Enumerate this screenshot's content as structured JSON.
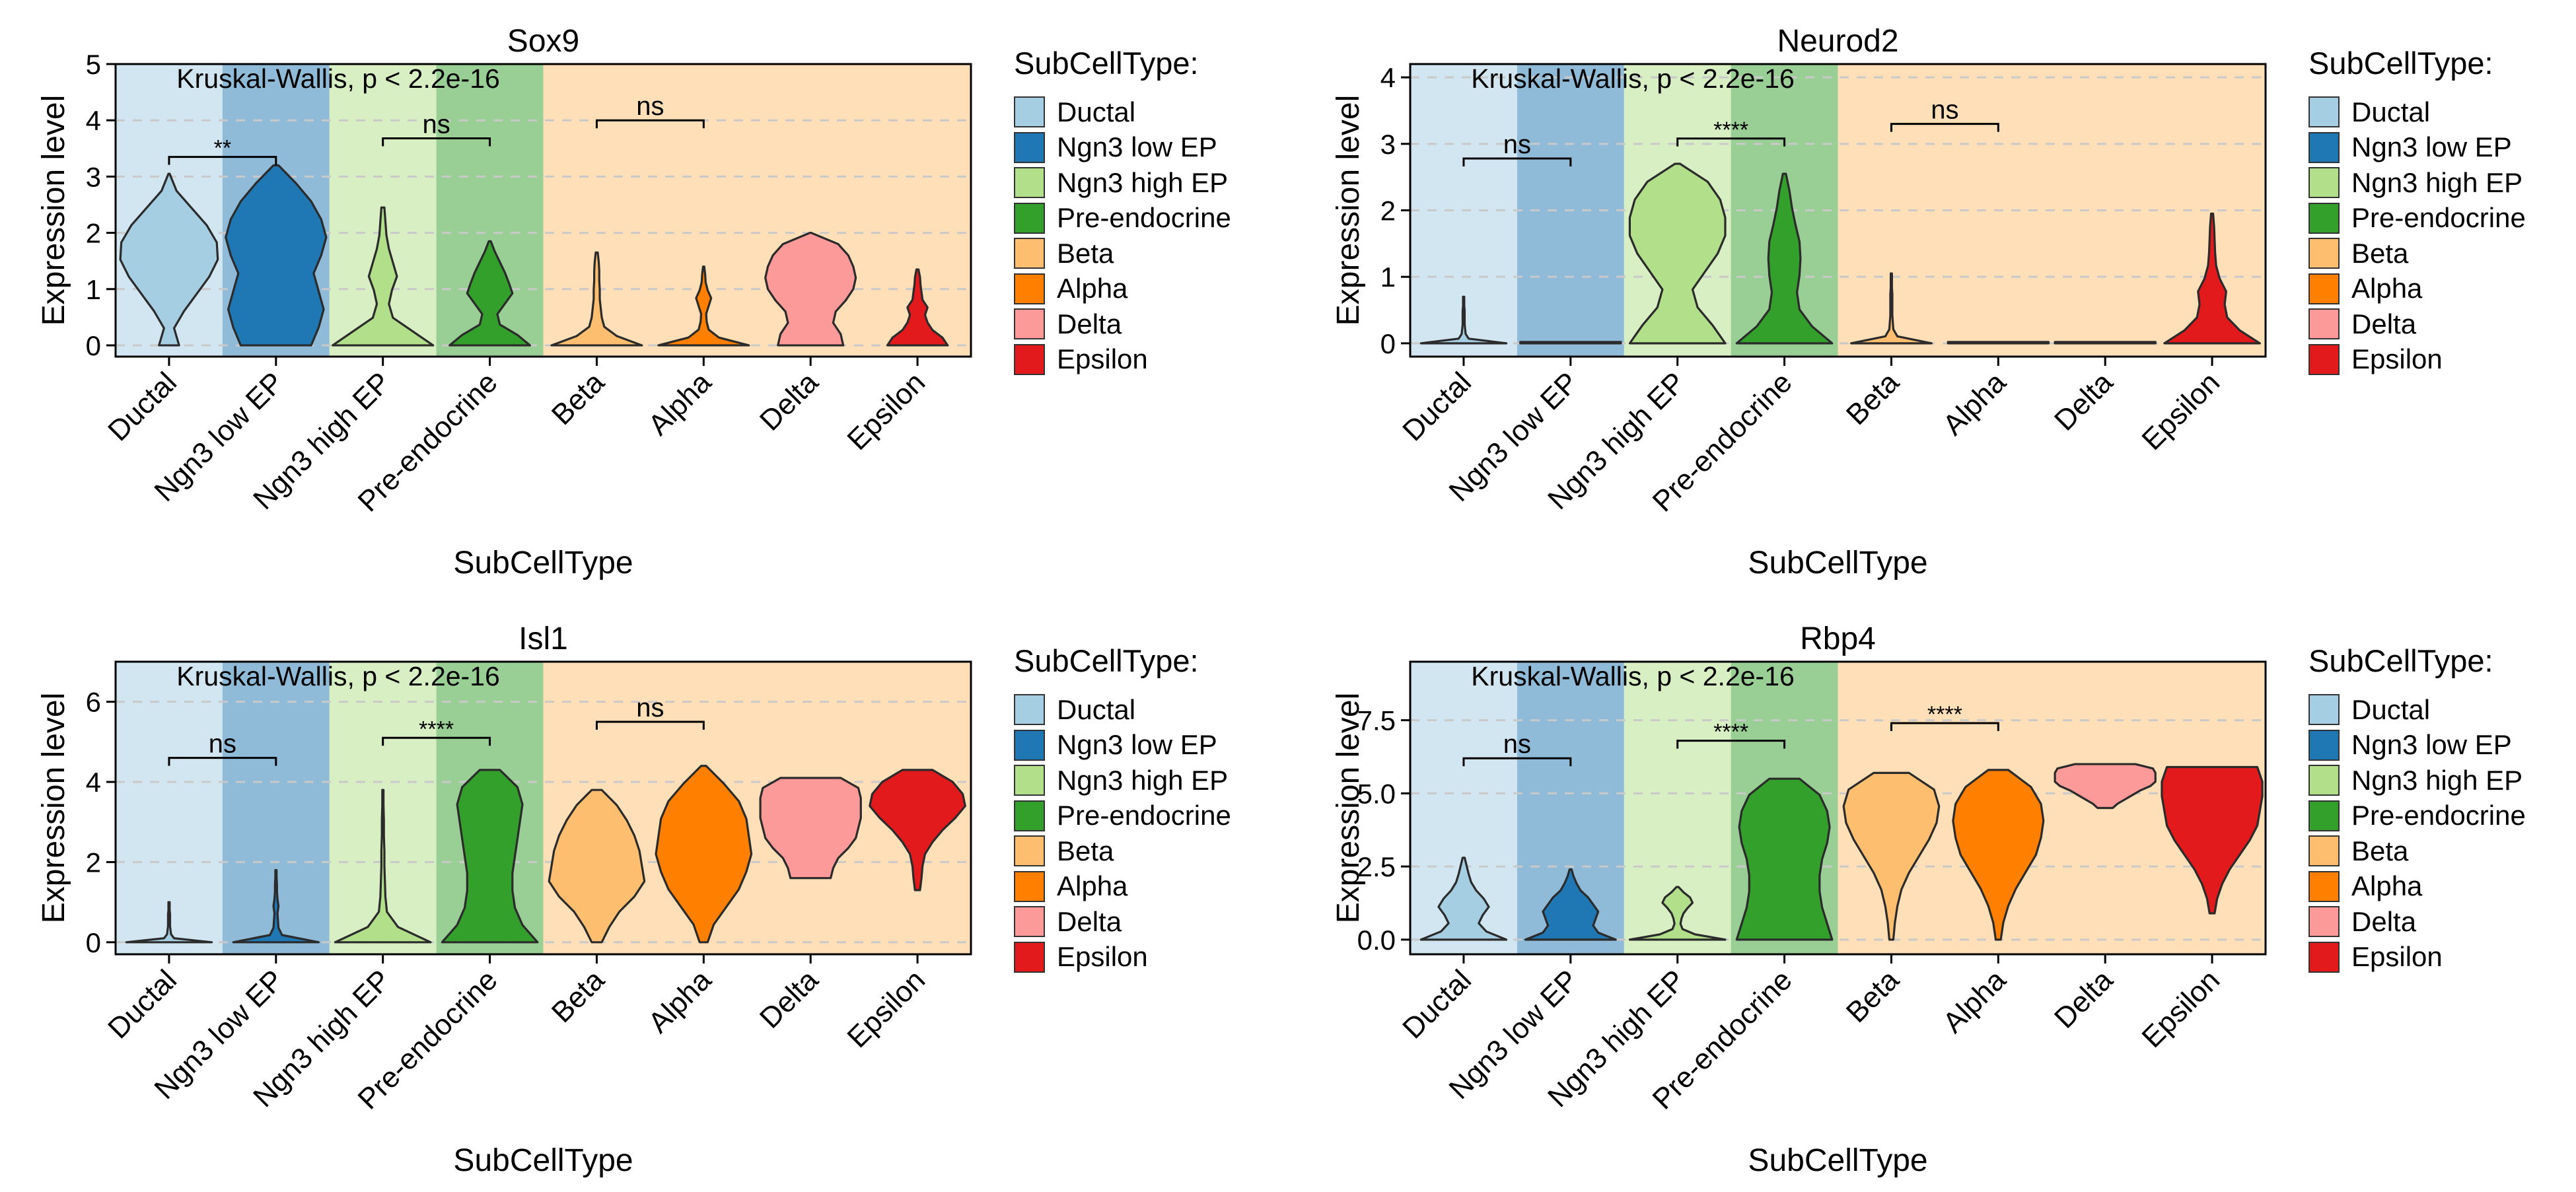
{
  "palette": {
    "Ductal": "#A6CEE3",
    "Ngn3 low EP": "#1F78B4",
    "Ngn3 high EP": "#B2DF8A",
    "Pre-endocrine": "#33A02C",
    "Beta": "#FDBF6F",
    "Alpha": "#FF7F00",
    "Delta": "#FB9A99",
    "Epsilon": "#E31A1C"
  },
  "chart_data": [
    {
      "type": "violin",
      "title": "Sox9",
      "xlabel": "SubCellType",
      "ylabel": "Expression level",
      "categories": [
        "Ductal",
        "Ngn3 low EP",
        "Ngn3 high EP",
        "Pre-endocrine",
        "Beta",
        "Alpha",
        "Delta",
        "Epsilon"
      ],
      "ylim": [
        -0.2,
        5
      ],
      "yticks": [
        0,
        1,
        2,
        3,
        4,
        5
      ],
      "ytick_labels": [
        "0",
        "1",
        "2",
        "3",
        "4",
        "5"
      ],
      "test_label": "Kruskal-Wallis, p < 2.2e-16",
      "background_groups": [
        {
          "from": "Ductal",
          "to": "Ductal",
          "color": "#A6CEE3"
        },
        {
          "from": "Ngn3 low EP",
          "to": "Ngn3 low EP",
          "color": "#1F78B4"
        },
        {
          "from": "Ngn3 high EP",
          "to": "Ngn3 high EP",
          "color": "#B2DF8A"
        },
        {
          "from": "Pre-endocrine",
          "to": "Pre-endocrine",
          "color": "#33A02C"
        },
        {
          "from": "Beta",
          "to": "Epsilon",
          "color": "#FDBF6F"
        }
      ],
      "comparisons": [
        {
          "groups": [
            "Ductal",
            "Ngn3 low EP"
          ],
          "y": 3.35,
          "label": "**"
        },
        {
          "groups": [
            "Ngn3 high EP",
            "Pre-endocrine"
          ],
          "y": 3.68,
          "label": "ns"
        },
        {
          "groups": [
            "Beta",
            "Alpha"
          ],
          "y": 4.0,
          "label": "ns"
        }
      ],
      "violins": [
        {
          "group": "Ductal",
          "ymin": 0,
          "ymax": 3.05,
          "widths": [
            0.2,
            0.1,
            0.3,
            0.55,
            0.8,
            0.97,
            0.95,
            0.75,
            0.45,
            0.15,
            0
          ]
        },
        {
          "group": "Ngn3 low EP",
          "ymin": 0,
          "ymax": 3.2,
          "widths": [
            0.7,
            0.85,
            0.95,
            0.85,
            0.75,
            0.9,
            1.0,
            0.9,
            0.7,
            0.4,
            0.05
          ]
        },
        {
          "group": "Ngn3 high EP",
          "ymin": 0,
          "ymax": 2.45,
          "widths": [
            1.0,
            0.6,
            0.2,
            0.12,
            0.18,
            0.28,
            0.2,
            0.12,
            0.07,
            0.05,
            0.03
          ]
        },
        {
          "group": "Pre-endocrine",
          "ymin": 0,
          "ymax": 1.85,
          "widths": [
            0.8,
            0.55,
            0.2,
            0.15,
            0.3,
            0.45,
            0.38,
            0.3,
            0.2,
            0.1,
            0.02
          ]
        },
        {
          "group": "Beta",
          "ymin": 0,
          "ymax": 1.65,
          "widths": [
            0.9,
            0.4,
            0.15,
            0.1,
            0.08,
            0.06,
            0.06,
            0.05,
            0.05,
            0.04,
            0.02
          ]
        },
        {
          "group": "Alpha",
          "ymin": 0,
          "ymax": 1.4,
          "widths": [
            0.9,
            0.3,
            0.1,
            0.06,
            0.05,
            0.1,
            0.15,
            0.08,
            0.04,
            0.03,
            0.01
          ]
        },
        {
          "group": "Delta",
          "ymin": 0,
          "ymax": 2.0,
          "widths": [
            0.65,
            0.6,
            0.45,
            0.5,
            0.7,
            0.85,
            0.9,
            0.85,
            0.75,
            0.55,
            0
          ]
        },
        {
          "group": "Epsilon",
          "ymin": 0,
          "ymax": 1.35,
          "widths": [
            0.6,
            0.5,
            0.3,
            0.2,
            0.15,
            0.2,
            0.1,
            0.08,
            0.06,
            0.05,
            0.02
          ]
        }
      ]
    },
    {
      "type": "violin",
      "title": "Neurod2",
      "xlabel": "SubCellType",
      "ylabel": "Expression level",
      "categories": [
        "Ductal",
        "Ngn3 low EP",
        "Ngn3 high EP",
        "Pre-endocrine",
        "Beta",
        "Alpha",
        "Delta",
        "Epsilon"
      ],
      "ylim": [
        -0.2,
        4.2
      ],
      "yticks": [
        0,
        1,
        2,
        3,
        4
      ],
      "ytick_labels": [
        "0",
        "1",
        "2",
        "3",
        "4"
      ],
      "test_label": "Kruskal-Wallis, p < 2.2e-16",
      "background_groups": [
        {
          "from": "Ductal",
          "to": "Ductal",
          "color": "#A6CEE3"
        },
        {
          "from": "Ngn3 low EP",
          "to": "Ngn3 low EP",
          "color": "#1F78B4"
        },
        {
          "from": "Ngn3 high EP",
          "to": "Ngn3 high EP",
          "color": "#B2DF8A"
        },
        {
          "from": "Pre-endocrine",
          "to": "Pre-endocrine",
          "color": "#33A02C"
        },
        {
          "from": "Beta",
          "to": "Epsilon",
          "color": "#FDBF6F"
        }
      ],
      "comparisons": [
        {
          "groups": [
            "Ductal",
            "Ngn3 low EP"
          ],
          "y": 2.78,
          "label": "ns"
        },
        {
          "groups": [
            "Ngn3 high EP",
            "Pre-endocrine"
          ],
          "y": 3.08,
          "label": "****"
        },
        {
          "groups": [
            "Beta",
            "Alpha"
          ],
          "y": 3.3,
          "label": "ns"
        }
      ],
      "violins": [
        {
          "group": "Ductal",
          "ymin": 0,
          "ymax": 0.7,
          "widths": [
            0.85,
            0.1,
            0.04,
            0.03,
            0.02,
            0.02,
            0.02,
            0.02,
            0.01,
            0.01,
            0.01
          ]
        },
        {
          "group": "Ngn3 low EP",
          "ymin": 0,
          "ymax": 0.02,
          "widths": [
            1,
            1,
            1,
            1,
            1,
            1,
            1,
            1,
            1,
            1,
            1
          ]
        },
        {
          "group": "Ngn3 high EP",
          "ymin": 0,
          "ymax": 2.7,
          "widths": [
            0.95,
            0.7,
            0.4,
            0.3,
            0.55,
            0.8,
            0.95,
            0.95,
            0.85,
            0.6,
            0.05
          ]
        },
        {
          "group": "Pre-endocrine",
          "ymin": 0,
          "ymax": 2.55,
          "widths": [
            0.95,
            0.55,
            0.3,
            0.25,
            0.3,
            0.32,
            0.3,
            0.22,
            0.15,
            0.1,
            0.03
          ]
        },
        {
          "group": "Beta",
          "ymin": 0,
          "ymax": 1.05,
          "widths": [
            0.8,
            0.12,
            0.04,
            0.03,
            0.02,
            0.02,
            0.02,
            0.02,
            0.01,
            0.01,
            0.01
          ]
        },
        {
          "group": "Alpha",
          "ymin": 0,
          "ymax": 0.02,
          "widths": [
            1,
            1,
            1,
            1,
            1,
            1,
            1,
            1,
            1,
            1,
            1
          ]
        },
        {
          "group": "Delta",
          "ymin": 0,
          "ymax": 0.02,
          "widths": [
            1,
            1,
            1,
            1,
            1,
            1,
            1,
            1,
            1,
            1,
            1
          ]
        },
        {
          "group": "Epsilon",
          "ymin": 0,
          "ymax": 1.95,
          "widths": [
            0.95,
            0.55,
            0.3,
            0.25,
            0.28,
            0.15,
            0.08,
            0.06,
            0.05,
            0.04,
            0.02
          ]
        }
      ]
    },
    {
      "type": "violin",
      "title": "Isl1",
      "xlabel": "SubCellType",
      "ylabel": "Expression level",
      "categories": [
        "Ductal",
        "Ngn3 low EP",
        "Ngn3 high EP",
        "Pre-endocrine",
        "Beta",
        "Alpha",
        "Delta",
        "Epsilon"
      ],
      "ylim": [
        -0.3,
        7
      ],
      "yticks": [
        0,
        2,
        4,
        6
      ],
      "ytick_labels": [
        "0",
        "2",
        "4",
        "6"
      ],
      "test_label": "Kruskal-Wallis, p < 2.2e-16",
      "background_groups": [
        {
          "from": "Ductal",
          "to": "Ductal",
          "color": "#A6CEE3"
        },
        {
          "from": "Ngn3 low EP",
          "to": "Ngn3 low EP",
          "color": "#1F78B4"
        },
        {
          "from": "Ngn3 high EP",
          "to": "Ngn3 high EP",
          "color": "#B2DF8A"
        },
        {
          "from": "Pre-endocrine",
          "to": "Pre-endocrine",
          "color": "#33A02C"
        },
        {
          "from": "Beta",
          "to": "Epsilon",
          "color": "#FDBF6F"
        }
      ],
      "comparisons": [
        {
          "groups": [
            "Ductal",
            "Ngn3 low EP"
          ],
          "y": 4.6,
          "label": "ns"
        },
        {
          "groups": [
            "Ngn3 high EP",
            "Pre-endocrine"
          ],
          "y": 5.1,
          "label": "****"
        },
        {
          "groups": [
            "Beta",
            "Alpha"
          ],
          "y": 5.5,
          "label": "ns"
        }
      ],
      "violins": [
        {
          "group": "Ductal",
          "ymin": 0,
          "ymax": 1.0,
          "widths": [
            0.85,
            0.1,
            0.04,
            0.03,
            0.02,
            0.02,
            0.02,
            0.02,
            0.01,
            0.01,
            0.01
          ]
        },
        {
          "group": "Ngn3 low EP",
          "ymin": 0,
          "ymax": 1.8,
          "widths": [
            0.85,
            0.12,
            0.05,
            0.04,
            0.03,
            0.05,
            0.03,
            0.02,
            0.02,
            0.01,
            0.01
          ]
        },
        {
          "group": "Ngn3 high EP",
          "ymin": 0,
          "ymax": 3.8,
          "widths": [
            0.95,
            0.3,
            0.08,
            0.05,
            0.04,
            0.03,
            0.03,
            0.02,
            0.02,
            0.01,
            0.01
          ]
        },
        {
          "group": "Pre-endocrine",
          "ymin": 0,
          "ymax": 4.3,
          "widths": [
            0.95,
            0.65,
            0.5,
            0.45,
            0.45,
            0.5,
            0.55,
            0.6,
            0.65,
            0.55,
            0.2
          ]
        },
        {
          "group": "Beta",
          "ymin": 0,
          "ymax": 3.8,
          "widths": [
            0.1,
            0.25,
            0.45,
            0.75,
            0.95,
            0.9,
            0.85,
            0.75,
            0.6,
            0.4,
            0.1
          ]
        },
        {
          "group": "Alpha",
          "ymin": 0,
          "ymax": 4.4,
          "widths": [
            0.08,
            0.2,
            0.45,
            0.7,
            0.85,
            0.95,
            0.9,
            0.85,
            0.7,
            0.4,
            0.05
          ]
        },
        {
          "group": "Delta",
          "ymin": 1.6,
          "ymax": 4.1,
          "widths": [
            0.4,
            0.45,
            0.55,
            0.75,
            0.9,
            0.95,
            1.0,
            1.0,
            1.0,
            0.95,
            0.6
          ]
        },
        {
          "group": "Epsilon",
          "ymin": 1.3,
          "ymax": 4.3,
          "widths": [
            0.05,
            0.08,
            0.1,
            0.15,
            0.3,
            0.5,
            0.75,
            0.95,
            0.9,
            0.7,
            0.3
          ]
        }
      ]
    },
    {
      "type": "violin",
      "title": "Rbp4",
      "xlabel": "SubCellType",
      "ylabel": "Expression level",
      "categories": [
        "Ductal",
        "Ngn3 low EP",
        "Ngn3 high EP",
        "Pre-endocrine",
        "Beta",
        "Alpha",
        "Delta",
        "Epsilon"
      ],
      "ylim": [
        -0.5,
        9.5
      ],
      "yticks": [
        0,
        2.5,
        5,
        7.5
      ],
      "ytick_labels": [
        "0.0",
        "2.5",
        "5.0",
        "7.5"
      ],
      "test_label": "Kruskal-Wallis, p < 2.2e-16",
      "background_groups": [
        {
          "from": "Ductal",
          "to": "Ductal",
          "color": "#A6CEE3"
        },
        {
          "from": "Ngn3 low EP",
          "to": "Ngn3 low EP",
          "color": "#1F78B4"
        },
        {
          "from": "Ngn3 high EP",
          "to": "Ngn3 high EP",
          "color": "#B2DF8A"
        },
        {
          "from": "Pre-endocrine",
          "to": "Pre-endocrine",
          "color": "#33A02C"
        },
        {
          "from": "Beta",
          "to": "Epsilon",
          "color": "#FDBF6F"
        }
      ],
      "comparisons": [
        {
          "groups": [
            "Ductal",
            "Ngn3 low EP"
          ],
          "y": 6.2,
          "label": "ns"
        },
        {
          "groups": [
            "Ngn3 high EP",
            "Pre-endocrine"
          ],
          "y": 6.8,
          "label": "****"
        },
        {
          "groups": [
            "Beta",
            "Alpha"
          ],
          "y": 7.4,
          "label": "****"
        }
      ],
      "violins": [
        {
          "group": "Ductal",
          "ymin": 0,
          "ymax": 2.8,
          "widths": [
            0.85,
            0.45,
            0.3,
            0.38,
            0.5,
            0.4,
            0.25,
            0.15,
            0.1,
            0.06,
            0.02
          ]
        },
        {
          "group": "Ngn3 low EP",
          "ymin": 0,
          "ymax": 2.4,
          "widths": [
            0.9,
            0.55,
            0.45,
            0.5,
            0.55,
            0.45,
            0.35,
            0.2,
            0.12,
            0.06,
            0.02
          ]
        },
        {
          "group": "Ngn3 high EP",
          "ymin": 0,
          "ymax": 1.8,
          "widths": [
            0.95,
            0.35,
            0.1,
            0.06,
            0.08,
            0.12,
            0.2,
            0.3,
            0.25,
            0.12,
            0.02
          ]
        },
        {
          "group": "Pre-endocrine",
          "ymin": 0,
          "ymax": 5.5,
          "widths": [
            0.95,
            0.85,
            0.75,
            0.7,
            0.7,
            0.75,
            0.85,
            0.9,
            0.85,
            0.7,
            0.3
          ]
        },
        {
          "group": "Beta",
          "ymin": 0,
          "ymax": 5.7,
          "widths": [
            0.04,
            0.07,
            0.12,
            0.2,
            0.35,
            0.55,
            0.75,
            0.9,
            0.95,
            0.85,
            0.35
          ]
        },
        {
          "group": "Alpha",
          "ymin": 0,
          "ymax": 5.8,
          "widths": [
            0.05,
            0.1,
            0.2,
            0.35,
            0.55,
            0.75,
            0.85,
            0.9,
            0.85,
            0.65,
            0.2
          ]
        },
        {
          "group": "Delta",
          "ymin": 4.5,
          "ymax": 6.0,
          "widths": [
            0.15,
            0.25,
            0.4,
            0.55,
            0.7,
            0.9,
            1.0,
            1.0,
            1.0,
            0.95,
            0.6
          ]
        },
        {
          "group": "Epsilon",
          "ymin": 0.9,
          "ymax": 5.9,
          "widths": [
            0.05,
            0.1,
            0.2,
            0.35,
            0.55,
            0.75,
            0.9,
            0.95,
            1.0,
            1.0,
            0.9
          ]
        }
      ]
    }
  ],
  "legend": {
    "title": "SubCellType:",
    "items": [
      "Ductal",
      "Ngn3 low EP",
      "Ngn3 high EP",
      "Pre-endocrine",
      "Beta",
      "Alpha",
      "Delta",
      "Epsilon"
    ]
  }
}
